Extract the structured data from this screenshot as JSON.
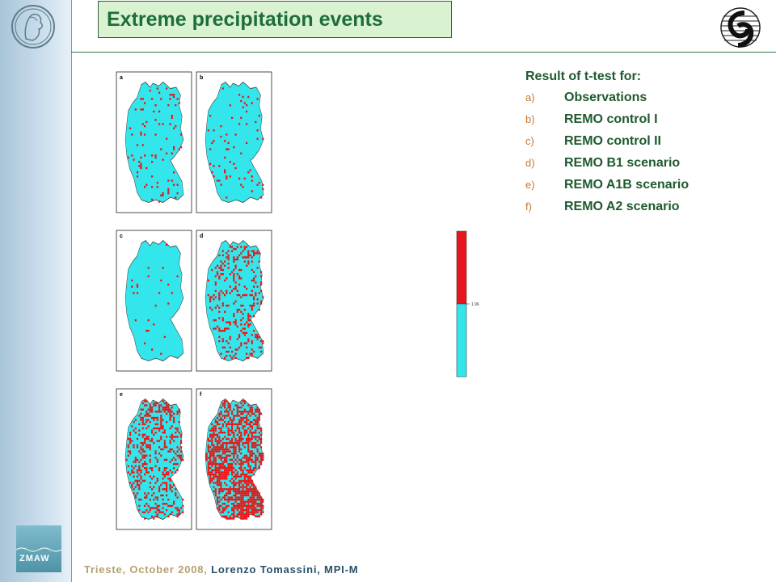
{
  "slide": {
    "title": "Extreme precipitation events",
    "footer": {
      "place_date": "Trieste, October 2008, ",
      "author": "Lorenzo Tomassini, MPI-M"
    },
    "zmaw_logo_text": "ZMAW"
  },
  "legend": {
    "heading": "Result of t-test for:",
    "items": [
      {
        "letter": "a)",
        "label": "Observations"
      },
      {
        "letter": "b)",
        "label": "REMO control I"
      },
      {
        "letter": "c)",
        "label": "REMO control II"
      },
      {
        "letter": "d)",
        "label": "REMO B1 scenario"
      },
      {
        "letter": "e)",
        "label": "REMO A1B scenario"
      },
      {
        "letter": "f)",
        "label": "REMO A2 scenario"
      }
    ]
  },
  "figure": {
    "panels": [
      "a",
      "b",
      "c",
      "d",
      "e",
      "f"
    ],
    "colorbar_tick": "1.96",
    "colors": {
      "land": "#33e6ec",
      "significant": "#ee1111",
      "colorbar_top": "#e8161c",
      "colorbar_bottom": "#33e6ec"
    }
  },
  "colors": {
    "title_bg": "#d9f2d0",
    "title_text": "#1e6e3a",
    "accent_green": "#2a7a3e"
  }
}
